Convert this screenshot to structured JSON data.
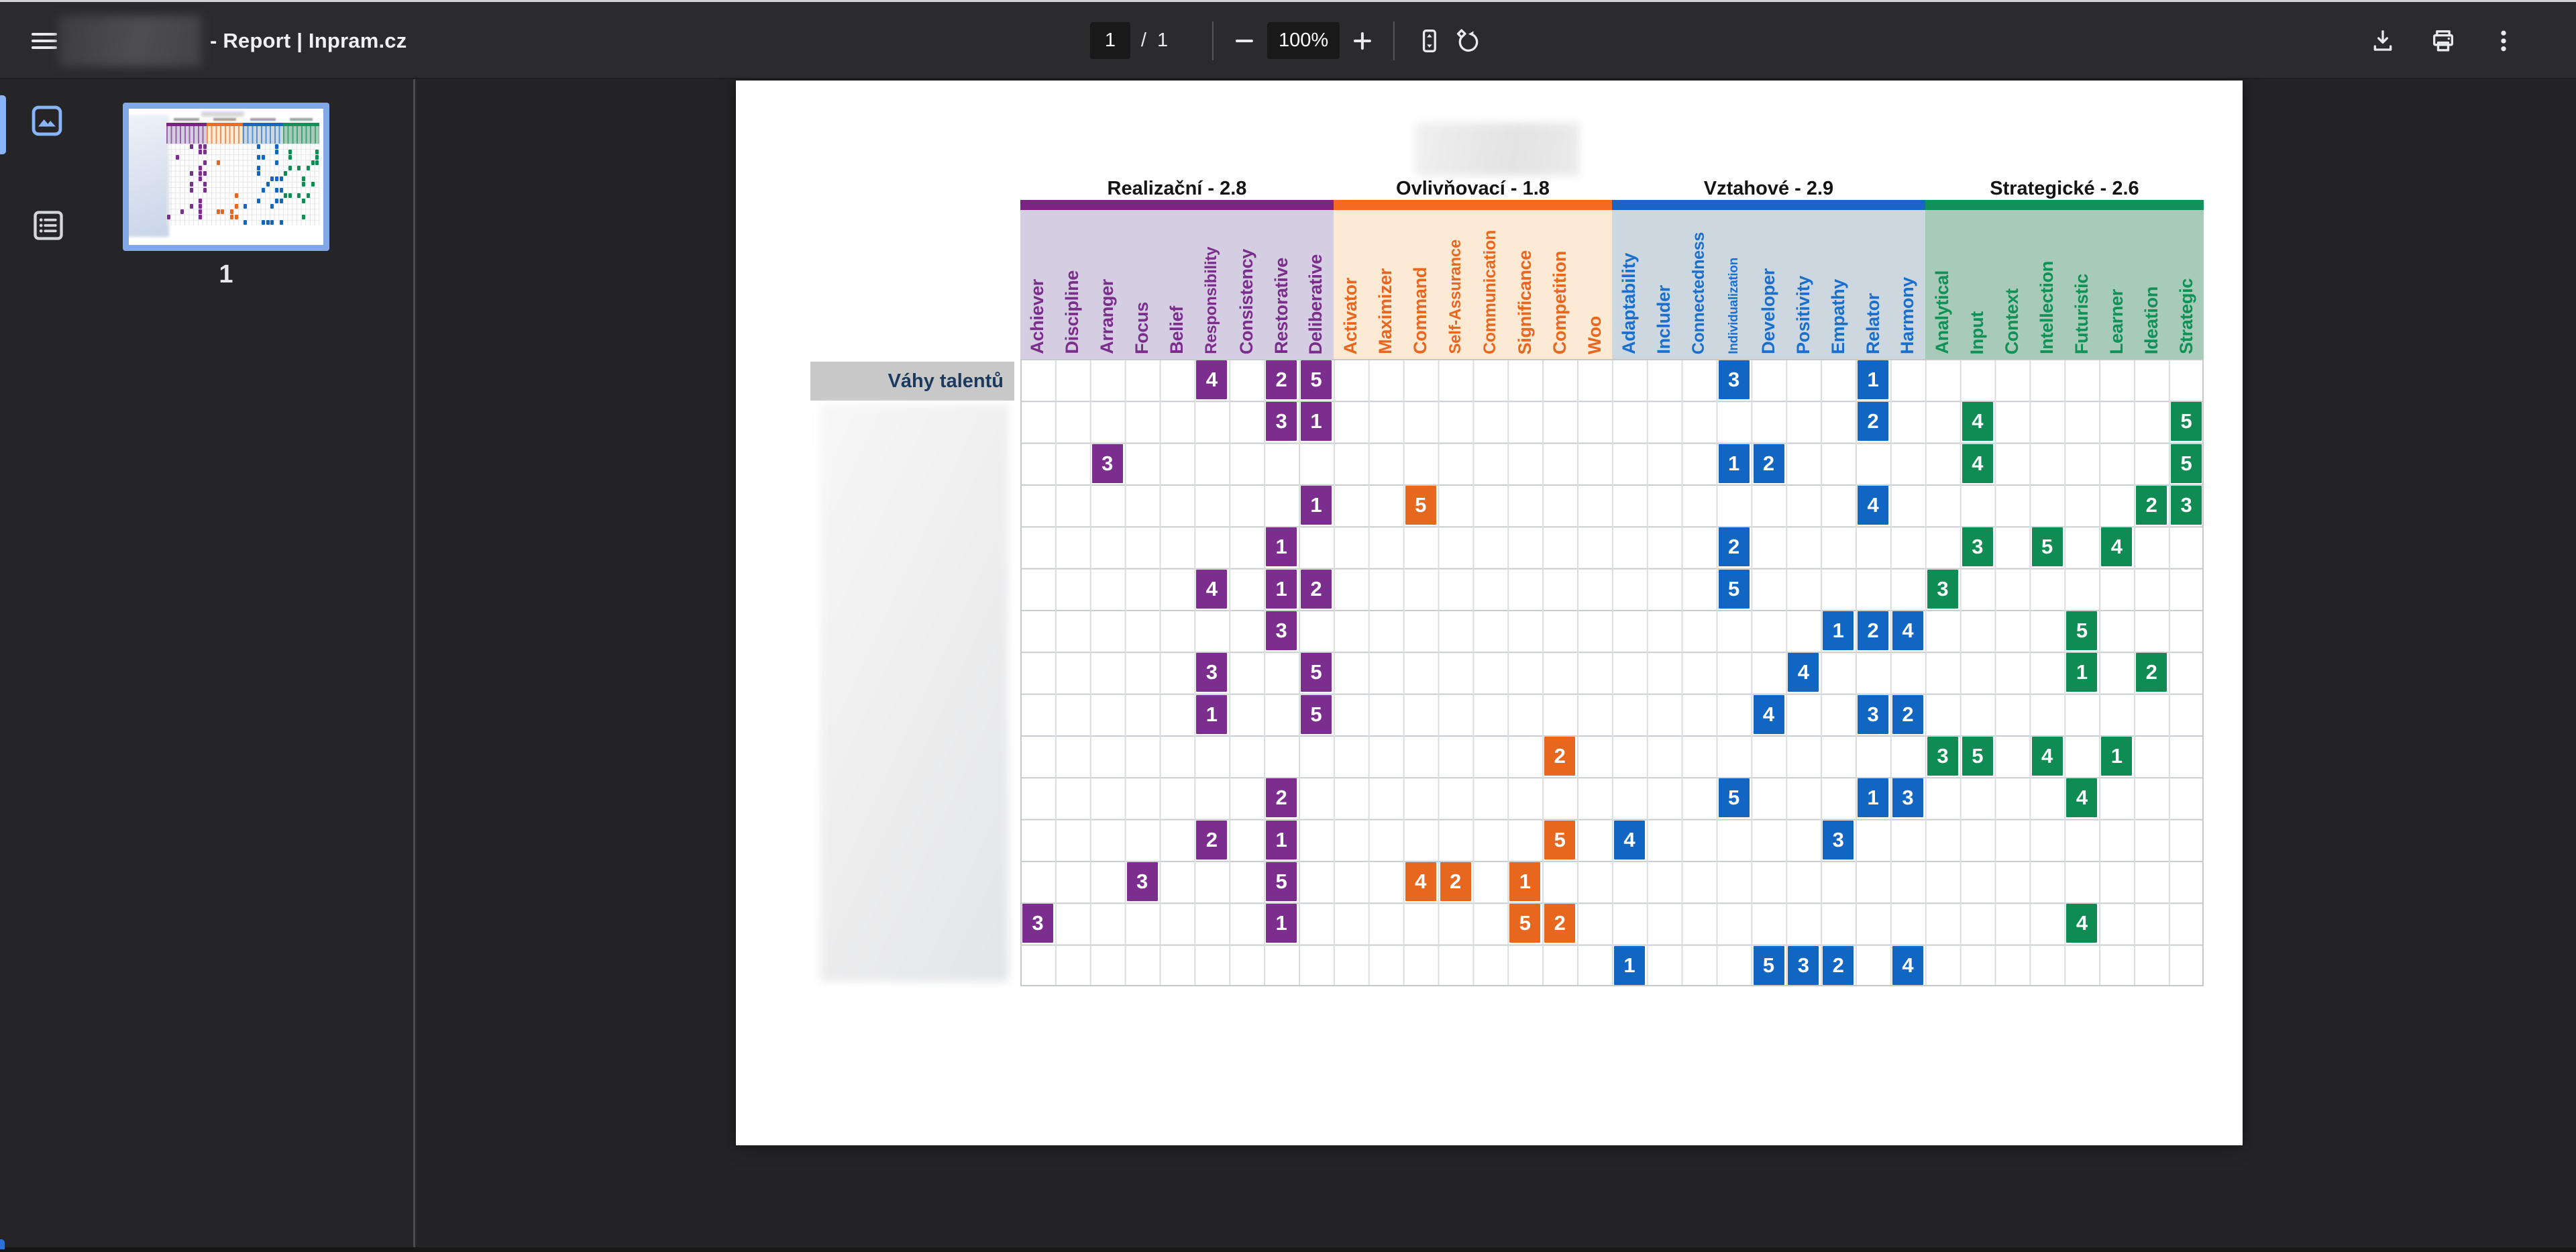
{
  "toolbar": {
    "title": "- Report | Inpram.cz",
    "page_current": "1",
    "page_divider": "/",
    "page_total": "1",
    "zoom_level": "100%",
    "icon_names": [
      "menu-icon",
      "zoom-out-icon",
      "zoom-in-icon",
      "fit-page-icon",
      "rotate-icon",
      "download-icon",
      "print-icon",
      "more-vertical-icon"
    ]
  },
  "sidebar": {
    "thumb_page_label": "1",
    "accent_color": "#8ab4f8",
    "icon_names": [
      "thumbnails-panel-icon",
      "document-outline-icon"
    ]
  },
  "report": {
    "row_header_label": "Váhy talentů",
    "groups": [
      {
        "name": "Realizační",
        "average": "2.8",
        "label": "Realizační - 2.8",
        "bar_color": "#7a2383",
        "tint_color": "#d5cee2",
        "text_color": "#7b2d8b",
        "cell_color": "#7c2e8e",
        "columns": [
          "Achiever",
          "Discipline",
          "Arranger",
          "Focus",
          "Belief",
          "Responsibility",
          "Consistency",
          "Restorative",
          "Deliberative"
        ]
      },
      {
        "name": "Ovlivňovací",
        "average": "1.8",
        "label": "Ovlivňovací - 1.8",
        "bar_color": "#f26b21",
        "tint_color": "#fdead4",
        "text_color": "#e9661f",
        "cell_color": "#e8671f",
        "columns": [
          "Activator",
          "Maximizer",
          "Command",
          "Self-Assurance",
          "Communication",
          "Significance",
          "Competition",
          "Woo"
        ]
      },
      {
        "name": "Vztahové",
        "average": "2.9",
        "label": "Vztahové - 2.9",
        "bar_color": "#1b64c6",
        "tint_color": "#cdd7e0",
        "text_color": "#1b6fcc",
        "cell_color": "#1166c4",
        "columns": [
          "Adaptability",
          "Includer",
          "Connectedness",
          "Individualization",
          "Developer",
          "Positivity",
          "Empathy",
          "Relator",
          "Harmony"
        ]
      },
      {
        "name": "Strategické",
        "average": "2.6",
        "label": "Strategické - 2.6",
        "bar_color": "#12915a",
        "tint_color": "#a8cab9",
        "text_color": "#0f9158",
        "cell_color": "#0e8c53",
        "columns": [
          "Analytical",
          "Input",
          "Context",
          "Intellection",
          "Futuristic",
          "Learner",
          "Ideation",
          "Strategic"
        ]
      }
    ],
    "cells": [
      [
        0,
        5,
        4
      ],
      [
        0,
        7,
        2
      ],
      [
        0,
        8,
        5
      ],
      [
        0,
        20,
        3
      ],
      [
        0,
        24,
        1
      ],
      [
        1,
        7,
        3
      ],
      [
        1,
        8,
        1
      ],
      [
        1,
        24,
        2
      ],
      [
        1,
        27,
        4
      ],
      [
        1,
        33,
        5
      ],
      [
        2,
        2,
        3
      ],
      [
        2,
        20,
        1
      ],
      [
        2,
        21,
        2
      ],
      [
        2,
        27,
        4
      ],
      [
        2,
        33,
        5
      ],
      [
        3,
        8,
        1
      ],
      [
        3,
        11,
        5
      ],
      [
        3,
        24,
        4
      ],
      [
        3,
        32,
        2
      ],
      [
        3,
        33,
        3
      ],
      [
        4,
        7,
        1
      ],
      [
        4,
        20,
        2
      ],
      [
        4,
        27,
        3
      ],
      [
        4,
        29,
        5
      ],
      [
        4,
        31,
        4
      ],
      [
        5,
        5,
        4
      ],
      [
        5,
        7,
        1
      ],
      [
        5,
        8,
        2
      ],
      [
        5,
        20,
        5
      ],
      [
        5,
        26,
        3
      ],
      [
        6,
        7,
        3
      ],
      [
        6,
        23,
        1
      ],
      [
        6,
        24,
        2
      ],
      [
        6,
        25,
        4
      ],
      [
        6,
        30,
        5
      ],
      [
        7,
        5,
        3
      ],
      [
        7,
        8,
        5
      ],
      [
        7,
        22,
        4
      ],
      [
        7,
        30,
        1
      ],
      [
        7,
        32,
        2
      ],
      [
        8,
        5,
        1
      ],
      [
        8,
        8,
        5
      ],
      [
        8,
        21,
        4
      ],
      [
        8,
        24,
        3
      ],
      [
        8,
        25,
        2
      ],
      [
        9,
        15,
        2
      ],
      [
        9,
        26,
        3
      ],
      [
        9,
        27,
        5
      ],
      [
        9,
        29,
        4
      ],
      [
        9,
        31,
        1
      ],
      [
        10,
        7,
        2
      ],
      [
        10,
        20,
        5
      ],
      [
        10,
        24,
        1
      ],
      [
        10,
        25,
        3
      ],
      [
        10,
        30,
        4
      ],
      [
        11,
        5,
        2
      ],
      [
        11,
        7,
        1
      ],
      [
        11,
        15,
        5
      ],
      [
        11,
        17,
        4
      ],
      [
        11,
        23,
        3
      ],
      [
        12,
        3,
        3
      ],
      [
        12,
        7,
        5
      ],
      [
        12,
        11,
        4
      ],
      [
        12,
        12,
        2
      ],
      [
        12,
        14,
        1
      ],
      [
        13,
        0,
        3
      ],
      [
        13,
        7,
        1
      ],
      [
        13,
        14,
        5
      ],
      [
        13,
        15,
        2
      ],
      [
        13,
        30,
        4
      ],
      [
        14,
        17,
        1
      ],
      [
        14,
        21,
        5
      ],
      [
        14,
        22,
        3
      ],
      [
        14,
        23,
        2
      ],
      [
        14,
        25,
        4
      ]
    ]
  }
}
